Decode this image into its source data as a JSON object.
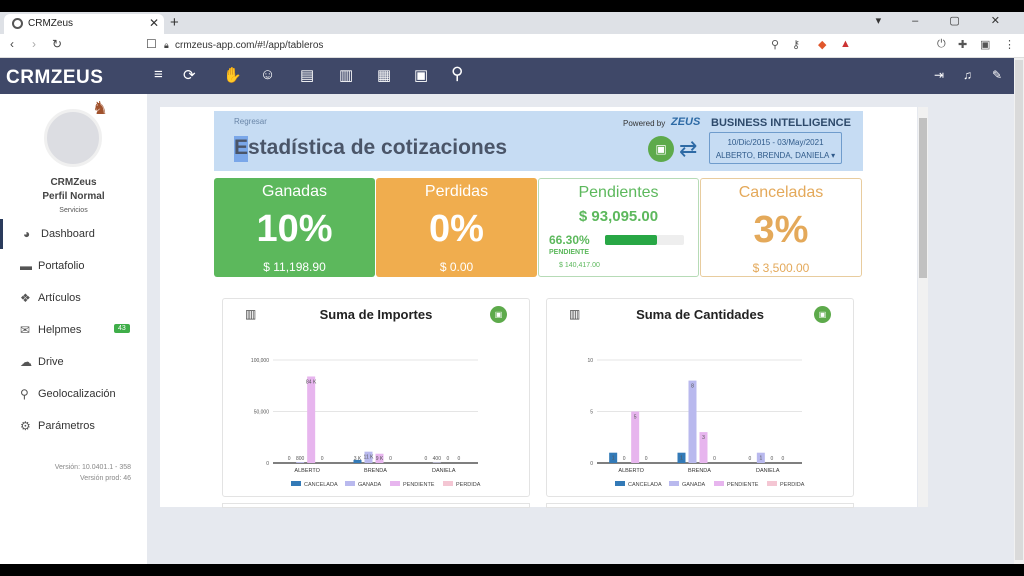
{
  "browser": {
    "tab_title": "CRMZeus",
    "url": "crmzeus-app.com/#!/app/tableros",
    "new_tab": "+",
    "close": "✕"
  },
  "app": {
    "logo": "CRMZEUS"
  },
  "header_icons": [
    "menu-icon",
    "refresh-icon",
    "handshake-icon",
    "users-icon",
    "document-clock-icon",
    "clipboard-icon",
    "document-dollar-icon",
    "calendar-icon",
    "search-icon"
  ],
  "user": {
    "name": "CRMZeus",
    "profile": "Perfil Normal",
    "services": "Servicios"
  },
  "sidebar": {
    "items": [
      {
        "label": "Dashboard",
        "icon": "pie-chart-icon",
        "glyph": "◕"
      },
      {
        "label": "Portafolio",
        "icon": "briefcase-icon",
        "glyph": "▬"
      },
      {
        "label": "Artículos",
        "icon": "cubes-icon",
        "glyph": "❖"
      },
      {
        "label": "Helpmes",
        "icon": "chat-icon",
        "glyph": "✉"
      },
      {
        "label": "Drive",
        "icon": "cloud-icon",
        "glyph": "☁"
      },
      {
        "label": "Geolocalización",
        "icon": "map-marker-icon",
        "glyph": "⚲"
      },
      {
        "label": "Parámetros",
        "icon": "gear-icon",
        "glyph": "⚙"
      }
    ],
    "helpmes_badge": "43",
    "version": "Versión: 10.0401.1 - 358",
    "version_prod": "Versión prod: 46"
  },
  "banner": {
    "back": "Regresar",
    "title": "Estadística de cotizaciones",
    "powered_by": "Powered by",
    "zeus": "ZEUS",
    "bi": "BUSINESS INTELLIGENCE",
    "date_range": "10/Dic/2015 - 03/May/2021",
    "users": "ALBERTO, BRENDA, DANIELA ▾"
  },
  "kpis": {
    "ganadas": {
      "title": "Ganadas",
      "pct": "10%",
      "amount": "$ 11,198.90"
    },
    "perdidas": {
      "title": "Perdidas",
      "pct": "0%",
      "amount": "$ 0.00"
    },
    "pendientes": {
      "title": "Pendientes",
      "amount": "$ 93,095.00",
      "pct": "66.30%",
      "label": "PENDIENTE",
      "total": "$ 140,417.00",
      "progress": 0.663
    },
    "canceladas": {
      "title": "Canceladas",
      "pct": "3%",
      "amount": "$ 3,500.00"
    }
  },
  "colors": {
    "cancelada": "#337ab7",
    "ganada": "#b9b9ee",
    "pendiente": "#e7b5ee",
    "perdida": "#f4c6d3"
  },
  "chart_data": [
    {
      "type": "bar",
      "title": "Suma de Importes",
      "categories": [
        "ALBERTO",
        "BRENDA",
        "DANIELA"
      ],
      "ylim": [
        0,
        100000
      ],
      "yticks": [
        "0",
        "50,000",
        "100,000"
      ],
      "series": [
        {
          "name": "CANCELADA",
          "values": [
            0,
            3000,
            0
          ],
          "labels": [
            "0",
            "3 K",
            "0"
          ]
        },
        {
          "name": "GANADA",
          "values": [
            800,
            11000,
            400
          ],
          "labels": [
            "800",
            "11 K",
            "400"
          ]
        },
        {
          "name": "PENDIENTE",
          "values": [
            84000,
            9000,
            0
          ],
          "labels": [
            "84 K",
            "9 K",
            "0"
          ]
        },
        {
          "name": "PERDIDA",
          "values": [
            0,
            0,
            0
          ],
          "labels": [
            "0",
            "0",
            "0"
          ]
        }
      ]
    },
    {
      "type": "bar",
      "title": "Suma de Cantidades",
      "categories": [
        "ALBERTO",
        "BRENDA",
        "DANIELA"
      ],
      "ylim": [
        0,
        10
      ],
      "yticks": [
        "0",
        "5",
        "10"
      ],
      "series": [
        {
          "name": "CANCELADA",
          "values": [
            1,
            1,
            0
          ],
          "labels": [
            "1",
            "1",
            "0"
          ]
        },
        {
          "name": "GANADA",
          "values": [
            0,
            8,
            1
          ],
          "labels": [
            "0",
            "8",
            "1"
          ]
        },
        {
          "name": "PENDIENTE",
          "values": [
            5,
            3,
            0
          ],
          "labels": [
            "5",
            "3",
            "0"
          ]
        },
        {
          "name": "PERDIDA",
          "values": [
            0,
            0,
            0
          ],
          "labels": [
            "0",
            "0",
            "0"
          ]
        }
      ]
    }
  ]
}
